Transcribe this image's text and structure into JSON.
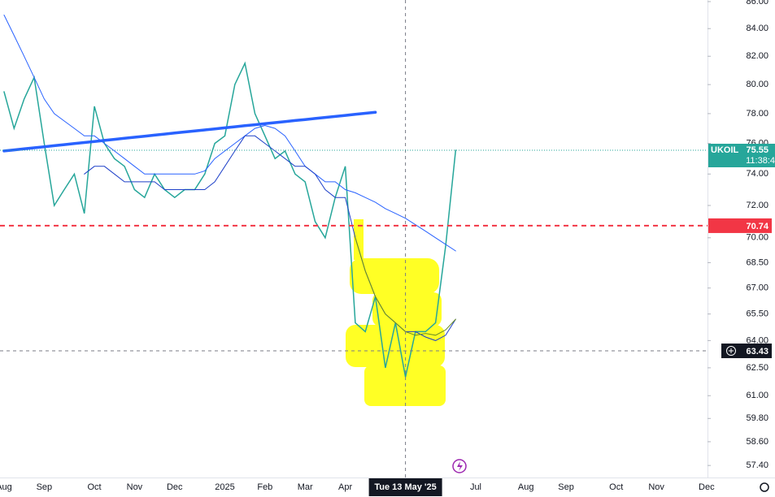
{
  "chart_data": {
    "type": "line",
    "log_scale": true,
    "categories": [
      "Aug",
      null,
      null,
      null,
      "Sep",
      null,
      null,
      null,
      null,
      "Oct",
      null,
      null,
      null,
      "Nov",
      null,
      null,
      null,
      "Dec",
      null,
      null,
      null,
      null,
      "2025",
      null,
      null,
      null,
      "Feb",
      null,
      null,
      null,
      "Mar",
      null,
      null,
      null,
      "Apr",
      null,
      null,
      null,
      null,
      null,
      "Tue 13 May '25",
      null,
      null,
      null,
      null,
      null,
      null,
      "Jul",
      null,
      null,
      null,
      null,
      "Aug",
      null,
      null,
      null,
      "Sep",
      null,
      null,
      null,
      null,
      "Oct",
      null,
      null,
      null,
      "Nov",
      null,
      null,
      null,
      null,
      "Dec"
    ],
    "series": [
      {
        "name": "UKOIL",
        "color": "#26a69a",
        "width": 1.5,
        "values": [
          79.5,
          77,
          79,
          80.5,
          76,
          72,
          73,
          74,
          71.5,
          78.5,
          76,
          75,
          74.5,
          73,
          72.5,
          74,
          73,
          72.5,
          73,
          73,
          74,
          76,
          76.5,
          80,
          81.5,
          78,
          76.5,
          75,
          75.5,
          74,
          73.5,
          71,
          70,
          72.5,
          74.5,
          65,
          64.5,
          66.5,
          62.5,
          65,
          62,
          64.5,
          64.5,
          65,
          69.5,
          75.55,
          null,
          null,
          null,
          null,
          null,
          null,
          null,
          null,
          null,
          null,
          null,
          null,
          null,
          null,
          null,
          null,
          null,
          null,
          null,
          null,
          null,
          null,
          null,
          null,
          null
        ]
      },
      {
        "color": "#2962ff",
        "width": 1,
        "values": [
          85,
          83.5,
          82,
          80.5,
          79,
          78,
          77.5,
          77,
          76.5,
          76.5,
          76,
          75.5,
          75,
          74.5,
          74,
          74,
          74,
          74,
          74,
          74,
          74.2,
          75,
          75.5,
          76,
          76.5,
          77,
          77.2,
          77,
          76.5,
          75.5,
          74.5,
          74,
          73.5,
          73.5,
          73,
          72.8,
          72.5,
          72.2,
          71.8,
          71.5,
          71.2,
          70.8,
          70.4,
          70,
          69.6,
          69.2,
          null,
          null,
          null,
          null,
          null,
          null,
          null,
          null,
          null,
          null,
          null,
          null,
          null,
          null,
          null,
          null,
          null,
          null,
          null,
          null,
          null,
          null,
          null,
          null,
          null
        ]
      },
      {
        "color": "#1e40c8",
        "width": 1,
        "values": [
          null,
          null,
          null,
          null,
          null,
          null,
          null,
          null,
          74,
          74.5,
          74.5,
          74,
          73.5,
          73.5,
          73.5,
          73.5,
          73,
          73,
          73,
          73,
          73,
          73.5,
          74.5,
          75.5,
          76.5,
          76.5,
          76,
          75.5,
          75,
          74.5,
          74.5,
          74,
          73,
          72.5,
          72.5,
          70,
          68,
          66.5,
          65.5,
          65,
          64.5,
          64.5,
          64.2,
          64,
          64.3,
          65.2,
          null,
          null,
          null,
          null,
          null,
          null,
          null,
          null,
          null,
          null,
          null,
          null,
          null,
          null,
          null,
          null,
          null,
          null,
          null,
          null,
          null,
          null,
          null,
          null,
          null
        ]
      },
      {
        "color": "#6b8e23",
        "width": 1,
        "values": [
          null,
          null,
          null,
          null,
          null,
          null,
          null,
          null,
          null,
          null,
          null,
          null,
          null,
          null,
          null,
          null,
          null,
          null,
          null,
          null,
          null,
          null,
          null,
          null,
          null,
          null,
          null,
          null,
          null,
          null,
          null,
          null,
          null,
          null,
          null,
          70,
          68,
          66.5,
          65.5,
          65,
          64.5,
          64.3,
          64.4,
          64.3,
          64.6,
          65.2,
          null,
          null,
          null,
          null,
          null,
          null,
          null,
          null,
          null,
          null,
          null,
          null,
          null,
          null,
          null,
          null,
          null,
          null,
          null,
          null,
          null,
          null,
          null,
          null,
          null
        ]
      },
      {
        "color": "#2962ff",
        "width": 3.5,
        "values": [
          75.5,
          75.57,
          75.64,
          75.71,
          75.78,
          75.85,
          75.92,
          75.99,
          76.06,
          76.13,
          76.2,
          76.27,
          76.34,
          76.41,
          76.48,
          76.55,
          76.62,
          76.69,
          76.76,
          76.83,
          76.9,
          76.97,
          77.04,
          77.11,
          77.18,
          77.25,
          77.32,
          77.39,
          77.46,
          77.53,
          77.6,
          77.67,
          77.74,
          77.81,
          77.88,
          77.95,
          78.02,
          78.09,
          null,
          null,
          null,
          null,
          null,
          null,
          null,
          null,
          null,
          null,
          null,
          null,
          null,
          null,
          null,
          null,
          null,
          null,
          null,
          null,
          null,
          null,
          null,
          null,
          null,
          null,
          null,
          null,
          null,
          null,
          null,
          null,
          null
        ]
      }
    ],
    "ylim": [
      56.8,
      86.12
    ],
    "yticks": [
      {
        "value": 86,
        "label": "86.00"
      },
      {
        "value": 84,
        "label": "84.00"
      },
      {
        "value": 82,
        "label": "82.00"
      },
      {
        "value": 80,
        "label": "80.00"
      },
      {
        "value": 78,
        "label": "78.00"
      },
      {
        "value": 76,
        "label": "76.00"
      },
      {
        "value": 74,
        "label": "74.00"
      },
      {
        "value": 72,
        "label": "72.00"
      },
      {
        "value": 70,
        "label": "70.00"
      },
      {
        "value": 68.5,
        "label": "68.50"
      },
      {
        "value": 67,
        "label": "67.00"
      },
      {
        "value": 65.5,
        "label": "65.50"
      },
      {
        "value": 64,
        "label": "64.00"
      },
      {
        "value": 62.5,
        "label": "62.50"
      },
      {
        "value": 61,
        "label": "61.00"
      },
      {
        "value": 59.8,
        "label": "59.80"
      },
      {
        "value": 58.6,
        "label": "58.60"
      },
      {
        "value": 57.4,
        "label": "57.40"
      }
    ],
    "hline": {
      "value": 70.74,
      "color": "#f23645"
    },
    "crosshair": {
      "x": "Tue 13 May '25",
      "y": 63.43
    },
    "countdown": "11:38:4"
  }
}
